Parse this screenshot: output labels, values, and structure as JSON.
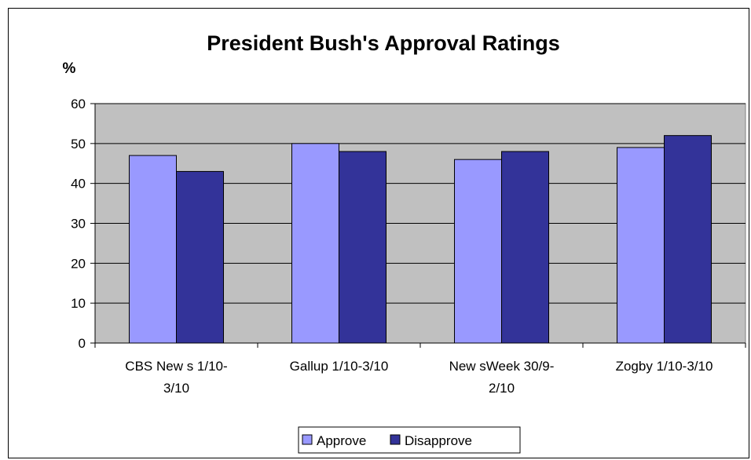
{
  "chart_data": {
    "type": "bar",
    "title": "President Bush's Approval Ratings",
    "ylabel": "%",
    "xlabel": "",
    "categories": [
      [
        "CBS New s 1/10-",
        "3/10"
      ],
      [
        "Gallup 1/10-3/10"
      ],
      [
        "New sWeek 30/9-",
        "2/10"
      ],
      [
        "Zogby 1/10-3/10"
      ]
    ],
    "series": [
      {
        "name": "Approve",
        "values": [
          47,
          50,
          46,
          49
        ],
        "color": "#9999ff"
      },
      {
        "name": "Disapprove",
        "values": [
          43,
          48,
          48,
          52
        ],
        "color": "#333399"
      }
    ],
    "ylim": [
      0,
      60
    ],
    "yticks": [
      0,
      10,
      20,
      30,
      40,
      50,
      60
    ],
    "grid": true,
    "plot_background": "#c0c0c0",
    "legend_position": "bottom"
  }
}
